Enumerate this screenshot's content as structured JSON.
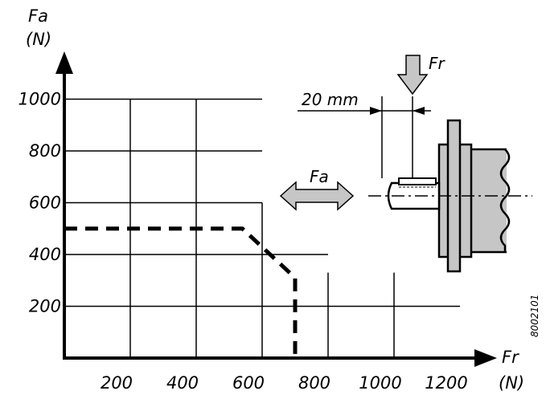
{
  "chart_data": {
    "type": "line",
    "x_axis": {
      "name": "Fr",
      "unit": "(N)",
      "range": [
        0,
        1200
      ],
      "ticks": [
        200,
        400,
        600,
        800,
        1000,
        1200
      ]
    },
    "y_axis": {
      "name": "Fa",
      "unit": "(N)",
      "range": [
        0,
        1000
      ],
      "ticks": [
        200,
        400,
        600,
        800,
        1000
      ]
    },
    "grid": true,
    "series": [
      {
        "style": "dashed",
        "points": [
          [
            0,
            500
          ],
          [
            540,
            500
          ],
          [
            700,
            310
          ],
          [
            700,
            0
          ]
        ]
      }
    ]
  },
  "diagram": {
    "radial_force_label": "Fr",
    "axial_force_label": "Fa",
    "distance_label": "20 mm"
  },
  "code": "8002101"
}
